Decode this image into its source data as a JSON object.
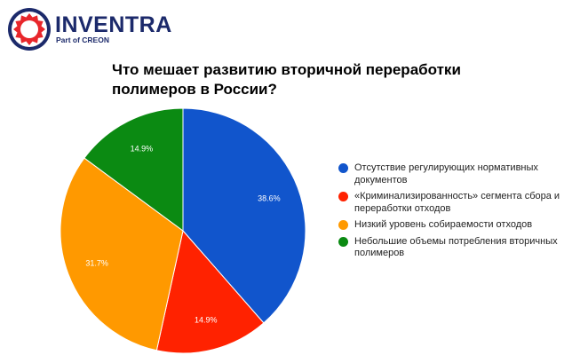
{
  "logo": {
    "brand": "INVENTRA",
    "tagline": "Part of CREON"
  },
  "chart_data": {
    "type": "pie",
    "title": "Что мешает развитию вторичной переработки полимеров в России?",
    "start_angle": "top, clockwise",
    "legend_position": "right",
    "slices": [
      {
        "label": "Отсутствие регулирующих нормативных документов",
        "value": 38.6,
        "display": "38.6%",
        "color": "#1155cc"
      },
      {
        "label": "«Криминализированность» сегмента сбора и переработки отходов",
        "value": 14.9,
        "display": "14.9%",
        "color": "#ff2200"
      },
      {
        "label": "Низкий уровень собираемости отходов",
        "value": 31.7,
        "display": "31.7%",
        "color": "#ff9900"
      },
      {
        "label": "Небольшие объемы потребления вторичных полимеров",
        "value": 14.9,
        "display": "14.9%",
        "color": "#0b8a12"
      }
    ]
  }
}
